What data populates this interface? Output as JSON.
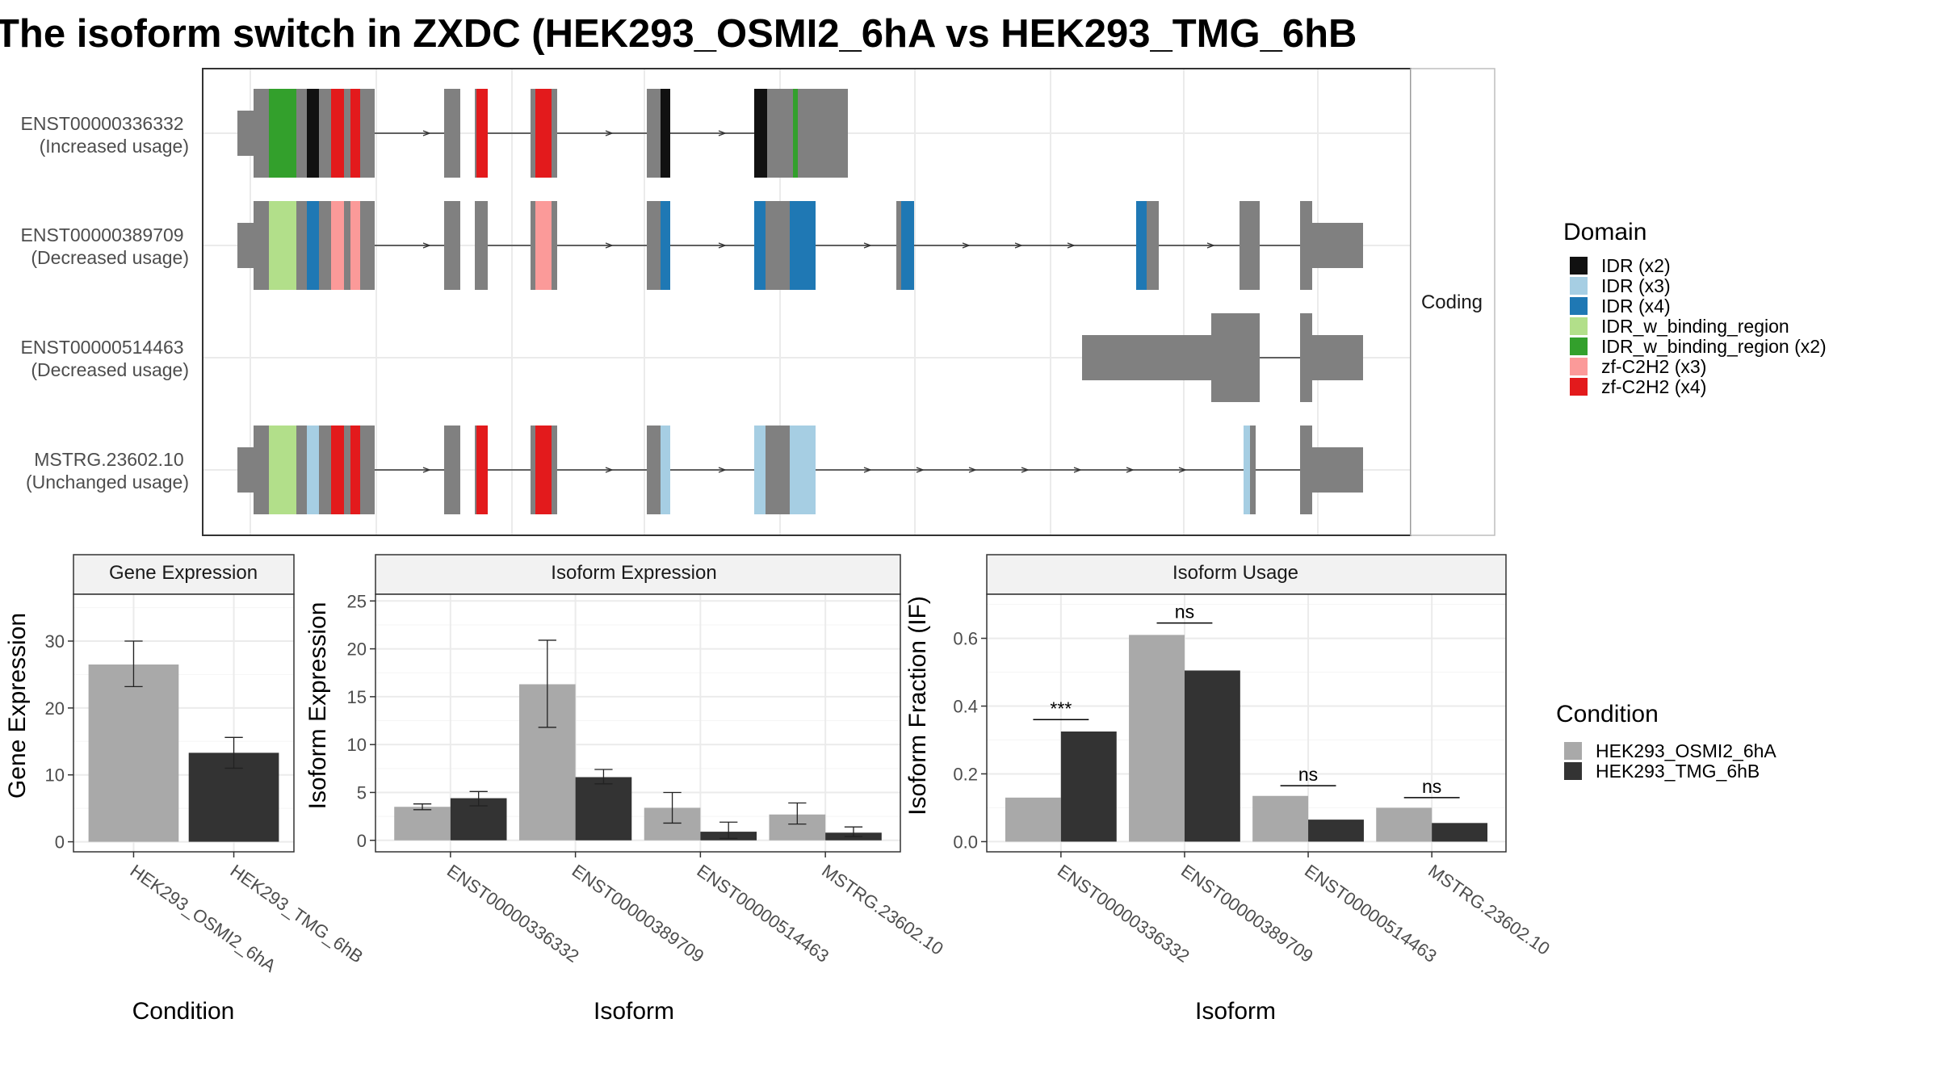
{
  "title": "The isoform switch in ZXDC (HEK293_OSMI2_6hA vs HEK293_TMG_6hB",
  "structure": {
    "facet_label": "Coding",
    "transcripts": [
      {
        "id": "ENST00000336332",
        "usage": "(Increased usage)"
      },
      {
        "id": "ENST00000389709",
        "usage": "(Decreased usage)"
      },
      {
        "id": "ENST00000514463",
        "usage": "(Decreased usage)"
      },
      {
        "id": "MSTRG.23602.10",
        "usage": "(Unchanged usage)"
      }
    ]
  },
  "domain_legend": {
    "title": "Domain",
    "items": [
      {
        "label": "IDR (x2)",
        "color": "#111111"
      },
      {
        "label": "IDR (x3)",
        "color": "#a6cee3"
      },
      {
        "label": "IDR (x4)",
        "color": "#1f78b4"
      },
      {
        "label": "IDR_w_binding_region",
        "color": "#b2df8a"
      },
      {
        "label": "IDR_w_binding_region (x2)",
        "color": "#33a02c"
      },
      {
        "label": "zf-C2H2 (x3)",
        "color": "#fb9a99"
      },
      {
        "label": "zf-C2H2 (x4)",
        "color": "#e31a1c"
      }
    ]
  },
  "condition_legend": {
    "title": "Condition",
    "items": [
      {
        "label": "HEK293_OSMI2_6hA",
        "color": "#a9a9a9"
      },
      {
        "label": "HEK293_TMG_6hB",
        "color": "#333333"
      }
    ]
  },
  "chart_data": [
    {
      "type": "bar",
      "strip": "Gene Expression",
      "xlabel": "Condition",
      "ylabel": "Gene Expression",
      "ylim": [
        -1.5,
        37
      ],
      "yticks": [
        0,
        10,
        20,
        30
      ],
      "categories": [
        "HEK293_OSMI2_6hA",
        "HEK293_TMG_6hB"
      ],
      "values": [
        26.5,
        13.3
      ],
      "errors": [
        [
          23.2,
          30.0
        ],
        [
          11.0,
          15.6
        ]
      ]
    },
    {
      "type": "bar",
      "strip": "Isoform Expression",
      "xlabel": "Isoform",
      "ylabel": "Isoform Expression",
      "ylim": [
        -1.2,
        25.7
      ],
      "yticks": [
        0,
        5,
        10,
        15,
        20,
        25
      ],
      "categories": [
        "ENST00000336332",
        "ENST00000389709",
        "ENST00000514463",
        "MSTRG.23602.10"
      ],
      "series": [
        {
          "name": "HEK293_OSMI2_6hA",
          "values": [
            3.5,
            16.3,
            3.4,
            2.7
          ],
          "errors": [
            [
              3.2,
              3.8
            ],
            [
              11.8,
              20.9
            ],
            [
              1.8,
              5.0
            ],
            [
              1.7,
              3.9
            ]
          ]
        },
        {
          "name": "HEK293_TMG_6hB",
          "values": [
            4.4,
            6.6,
            0.9,
            0.8
          ],
          "errors": [
            [
              3.6,
              5.1
            ],
            [
              5.9,
              7.4
            ],
            [
              0.2,
              1.9
            ],
            [
              0.4,
              1.4
            ]
          ]
        }
      ]
    },
    {
      "type": "bar",
      "strip": "Isoform Usage",
      "xlabel": "Isoform",
      "ylabel": "Isoform Fraction (IF)",
      "ylim": [
        -0.03,
        0.73
      ],
      "yticks": [
        "0.0",
        "0.2",
        "0.4",
        "0.6"
      ],
      "categories": [
        "ENST00000336332",
        "ENST00000389709",
        "ENST00000514463",
        "MSTRG.23602.10"
      ],
      "series": [
        {
          "name": "HEK293_OSMI2_6hA",
          "values": [
            0.13,
            0.61,
            0.135,
            0.1
          ]
        },
        {
          "name": "HEK293_TMG_6hB",
          "values": [
            0.325,
            0.505,
            0.065,
            0.055
          ]
        }
      ],
      "significance": [
        {
          "label": "***",
          "y": 0.36
        },
        {
          "label": "ns",
          "y": 0.645
        },
        {
          "label": "ns",
          "y": 0.165
        },
        {
          "label": "ns",
          "y": 0.13
        }
      ]
    }
  ]
}
